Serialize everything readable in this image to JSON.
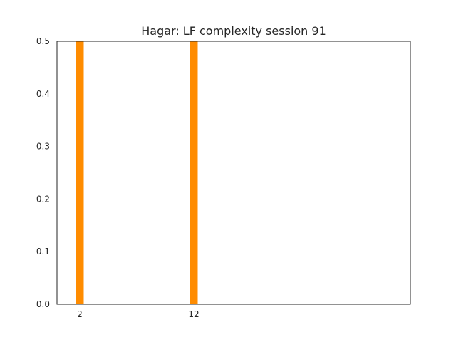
{
  "chart_data": {
    "type": "bar",
    "title": "Hagar: LF complexity session 91",
    "xlabel": "",
    "ylabel": "",
    "x": [
      2,
      12
    ],
    "values": [
      0.5,
      0.5
    ],
    "xlim": [
      0,
      31
    ],
    "ylim": [
      0,
      0.5
    ],
    "xticks": [
      2,
      12
    ],
    "yticks": [
      0.0,
      0.1,
      0.2,
      0.3,
      0.4,
      0.5
    ],
    "ytick_labels": [
      "0.0",
      "0.1",
      "0.2",
      "0.3",
      "0.4",
      "0.5"
    ],
    "bar_color": "#ff8c00",
    "grid": false,
    "legend": "none"
  }
}
